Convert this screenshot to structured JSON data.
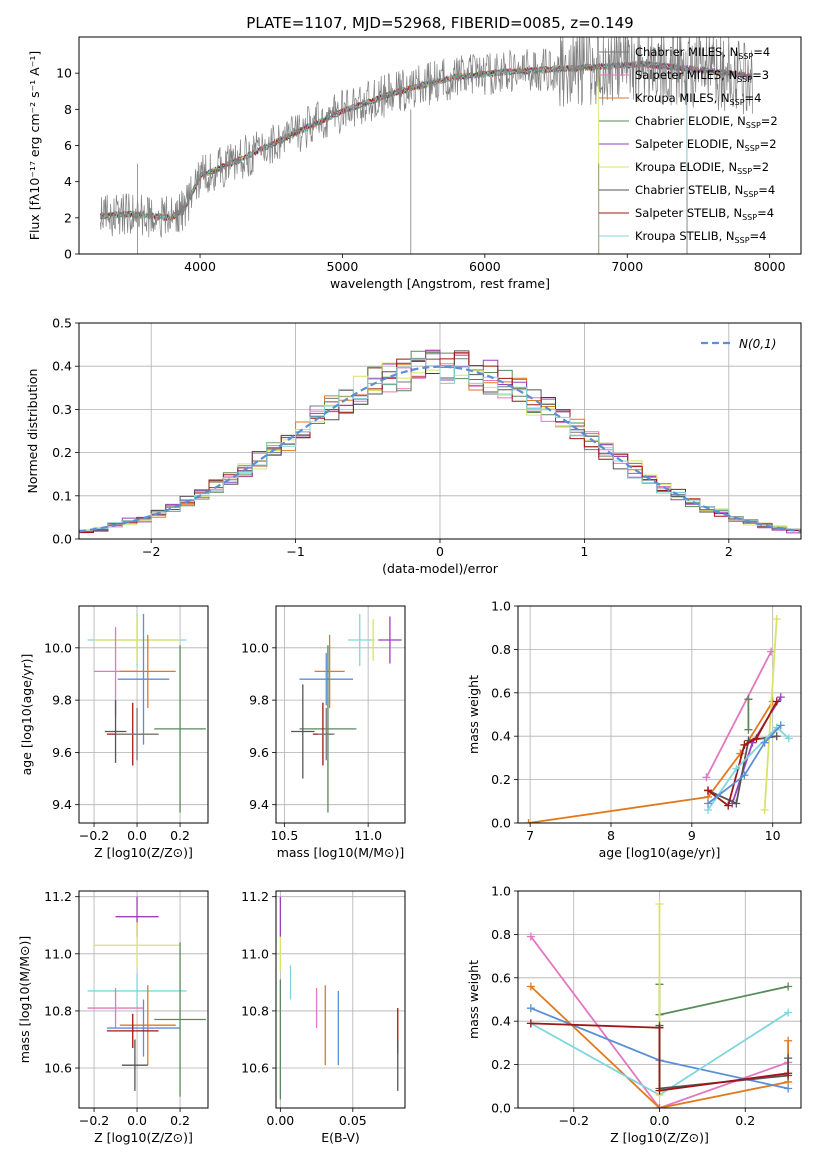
{
  "figure": {
    "title": "PLATE=1107, MJD=52968, FIBERID=0085, z=0.149"
  },
  "colors": {
    "Chabrier MILES": "#7a7a7a",
    "Salpeter MILES": "#e377c2",
    "Kroupa MILES": "#e07a1f",
    "Chabrier ELODIE": "#5a8a5a",
    "Salpeter ELODIE": "#9a3fc0",
    "Kroupa ELODIE": "#d9e36a",
    "Chabrier STELIB": "#555555",
    "Salpeter STELIB": "#a01515",
    "Kroupa STELIB": "#7fd6dc",
    "gauss": "#5b8fd6",
    "extra_blue": "#5b7fd6",
    "extra_red": "#8b1a1a"
  },
  "chart_data": [
    {
      "id": "spectrum",
      "type": "line",
      "xlabel": "wavelength [Angstrom, rest frame]",
      "ylabel": "Flux [fλ10⁻¹⁷ erg cm⁻² s⁻¹ A⁻¹]",
      "xlim": [
        3150,
        8220
      ],
      "ylim": [
        0,
        12
      ],
      "xticks": [
        4000,
        5000,
        6000,
        7000,
        8000
      ],
      "yticks": [
        0,
        2,
        4,
        6,
        8,
        10
      ],
      "legend_position": "top-right",
      "series": [
        {
          "name": "Chabrier MILES, N",
          "sub": "SSP",
          "tail": "=4",
          "color_key": "Chabrier MILES"
        },
        {
          "name": "Salpeter MILES, N",
          "sub": "SSP",
          "tail": "=3",
          "color_key": "Salpeter MILES"
        },
        {
          "name": "Kroupa MILES, N",
          "sub": "SSP",
          "tail": "=4",
          "color_key": "Kroupa MILES"
        },
        {
          "name": "Chabrier ELODIE, N",
          "sub": "SSP",
          "tail": "=2",
          "color_key": "Chabrier ELODIE"
        },
        {
          "name": "Salpeter ELODIE, N",
          "sub": "SSP",
          "tail": "=2",
          "color_key": "Salpeter ELODIE"
        },
        {
          "name": "Kroupa ELODIE, N",
          "sub": "SSP",
          "tail": "=2",
          "color_key": "Kroupa ELODIE"
        },
        {
          "name": "Chabrier STELIB, N",
          "sub": "SSP",
          "tail": "=4",
          "color_key": "Chabrier STELIB"
        },
        {
          "name": "Salpeter STELIB, N",
          "sub": "SSP",
          "tail": "=4",
          "color_key": "Salpeter STELIB"
        },
        {
          "name": "Kroupa STELIB, N",
          "sub": "SSP",
          "tail": "=4",
          "color_key": "Kroupa STELIB"
        }
      ],
      "continuum_x": [
        3300,
        3500,
        3800,
        3900,
        4000,
        4300,
        4700,
        5000,
        5400,
        5800,
        6200,
        6700,
        7100,
        7500,
        7900
      ],
      "continuum_y": [
        2.1,
        2.2,
        2.0,
        2.6,
        4.3,
        5.3,
        6.8,
        7.9,
        9.0,
        9.8,
        10.1,
        10.3,
        10.5,
        10.2,
        9.8
      ],
      "data_noise_amplitude": 1.2,
      "model_cutoffs": {
        "Kroupa ELODIE": 6800,
        "Salpeter STELIB": 7420,
        "Kroupa STELIB": 7420
      },
      "grid": false
    },
    {
      "id": "residuals",
      "type": "line",
      "subtype": "step-histogram",
      "xlabel": "(data-model)/error",
      "ylabel": "Normed distribution",
      "xlim": [
        -2.5,
        2.5
      ],
      "ylim": [
        0,
        0.5
      ],
      "xticks": [
        -2,
        -1,
        0,
        1,
        2
      ],
      "yticks": [
        0.0,
        0.1,
        0.2,
        0.3,
        0.4,
        0.5
      ],
      "bin_width": 0.1,
      "gaussian_label": "N(0,1)",
      "legend_position": "top-right",
      "grid": true
    },
    {
      "id": "age_vs_Z",
      "type": "scatter",
      "subtype": "errorbar",
      "xlabel": "Z [log10(Z/Z⊙)]",
      "ylabel": "age [log10(age/yr)]",
      "xlim": [
        -0.27,
        0.33
      ],
      "ylim": [
        9.33,
        10.16
      ],
      "xticks": [
        -0.2,
        0.0,
        0.2
      ],
      "yticks": [
        9.4,
        9.6,
        9.8,
        10.0
      ],
      "points": [
        {
          "color_key": "Kroupa STELIB",
          "x": 0.0,
          "y": 10.03,
          "xerr": 0.23,
          "yerr": 0.1
        },
        {
          "color_key": "Kroupa ELODIE",
          "x": 0.0,
          "y": 10.03,
          "xerr": 0.2,
          "yerr": 0.09
        },
        {
          "color_key": "Salpeter MILES",
          "x": -0.1,
          "y": 9.91,
          "xerr": 0.1,
          "yerr": 0.17
        },
        {
          "color_key": "Kroupa MILES",
          "x": 0.05,
          "y": 9.91,
          "xerr": 0.13,
          "yerr": 0.14
        },
        {
          "color_key": "gauss",
          "x": 0.03,
          "y": 9.88,
          "xerr": 0.12,
          "yerr": 0.25
        },
        {
          "color_key": "Chabrier ELODIE",
          "x": 0.2,
          "y": 9.69,
          "xerr": 0.12,
          "yerr": 0.32
        },
        {
          "color_key": "Chabrier STELIB",
          "x": -0.1,
          "y": 9.68,
          "xerr": 0.05,
          "yerr": 0.12
        },
        {
          "color_key": "Salpeter STELIB",
          "x": -0.02,
          "y": 9.67,
          "xerr": 0.12,
          "yerr": 0.12
        },
        {
          "color_key": "Chabrier MILES",
          "x": 0.0,
          "y": 9.67,
          "xerr": 0.1,
          "yerr": 0.1
        }
      ],
      "grid": true
    },
    {
      "id": "age_vs_mass",
      "type": "scatter",
      "subtype": "errorbar",
      "xlabel": "mass [log10(M/M⊙)]",
      "ylabel": "",
      "xlim": [
        10.45,
        11.22
      ],
      "ylim": [
        9.33,
        10.16
      ],
      "xticks": [
        10.5,
        11.0
      ],
      "yticks": [
        9.4,
        9.6,
        9.8,
        10.0
      ],
      "points": [
        {
          "color_key": "Salpeter ELODIE",
          "x": 11.13,
          "y": 10.03,
          "xerr": 0.07,
          "yerr": 0.09
        },
        {
          "color_key": "Kroupa ELODIE",
          "x": 11.03,
          "y": 10.03,
          "xerr": 0.01,
          "yerr": 0.08
        },
        {
          "color_key": "Kroupa STELIB",
          "x": 10.95,
          "y": 10.03,
          "xerr": 0.07,
          "yerr": 0.1
        },
        {
          "color_key": "Kroupa MILES",
          "x": 10.77,
          "y": 9.91,
          "xerr": 0.09,
          "yerr": 0.14
        },
        {
          "color_key": "gauss",
          "x": 10.75,
          "y": 9.88,
          "xerr": 0.16,
          "yerr": 0.1
        },
        {
          "color_key": "Chabrier ELODIE",
          "x": 10.76,
          "y": 9.69,
          "xerr": 0.17,
          "yerr": 0.32
        },
        {
          "color_key": "Chabrier STELIB",
          "x": 10.61,
          "y": 9.68,
          "xerr": 0.07,
          "yerr": 0.18
        },
        {
          "color_key": "Salpeter STELIB",
          "x": 10.73,
          "y": 9.67,
          "xerr": 0.06,
          "yerr": 0.12
        },
        {
          "color_key": "Chabrier MILES",
          "x": 10.75,
          "y": 9.67,
          "xerr": 0.05,
          "yerr": 0.1
        }
      ],
      "grid": true
    },
    {
      "id": "mass_weight_vs_age",
      "type": "line",
      "xlabel": "age [log10(age/yr)]",
      "ylabel": "mass weight",
      "xlim": [
        6.85,
        10.35
      ],
      "ylim": [
        0.0,
        1.0
      ],
      "xticks": [
        7,
        8,
        9,
        10
      ],
      "yticks": [
        0.0,
        0.2,
        0.4,
        0.6,
        0.8,
        1.0
      ],
      "series": [
        {
          "color_key": "Salpeter MILES",
          "x": [
            9.18,
            9.98
          ],
          "y": [
            0.21,
            0.79
          ]
        },
        {
          "color_key": "Kroupa MILES",
          "x": [
            6.98,
            9.2,
            9.6,
            10.0
          ],
          "y": [
            0.0,
            0.12,
            0.32,
            0.56
          ]
        },
        {
          "color_key": "Chabrier ELODIE",
          "x": [
            9.7,
            9.7,
            9.7
          ],
          "y": [
            0.43,
            0.57,
            0.57
          ]
        },
        {
          "color_key": "Salpeter ELODIE",
          "x": [
            9.5,
            9.75,
            10.1
          ],
          "y": [
            0.09,
            0.37,
            0.58
          ]
        },
        {
          "color_key": "Kroupa ELODIE",
          "x": [
            9.9,
            10.05
          ],
          "y": [
            0.06,
            0.94
          ]
        },
        {
          "color_key": "Chabrier STELIB",
          "x": [
            9.2,
            9.55,
            9.7,
            10.05
          ],
          "y": [
            0.15,
            0.09,
            0.38,
            0.4
          ]
        },
        {
          "color_key": "Salpeter STELIB",
          "x": [
            9.2,
            9.45,
            9.65,
            9.8,
            10.05
          ],
          "y": [
            0.15,
            0.08,
            0.36,
            0.39,
            0.56
          ]
        },
        {
          "color_key": "Kroupa STELIB",
          "x": [
            9.2,
            9.55,
            10.05,
            10.2
          ],
          "y": [
            0.06,
            0.25,
            0.44,
            0.39
          ]
        },
        {
          "color_key": "gauss",
          "x": [
            9.2,
            9.65,
            9.9,
            10.1
          ],
          "y": [
            0.09,
            0.22,
            0.37,
            0.45
          ]
        }
      ],
      "grid": true
    },
    {
      "id": "mass_vs_Z",
      "type": "scatter",
      "subtype": "errorbar",
      "xlabel": "Z [log10(Z/Z⊙)]",
      "ylabel": "mass [log10(M/M⊙)]",
      "xlim": [
        -0.27,
        0.33
      ],
      "ylim": [
        10.46,
        11.22
      ],
      "xticks": [
        -0.2,
        0.0,
        0.2
      ],
      "yticks": [
        10.6,
        10.8,
        11.0,
        11.2
      ],
      "points": [
        {
          "color_key": "Salpeter ELODIE",
          "x": 0.0,
          "y": 11.13,
          "xerr": 0.1,
          "yerr": 0.07
        },
        {
          "color_key": "Kroupa ELODIE",
          "x": 0.0,
          "y": 11.03,
          "xerr": 0.2,
          "yerr": 0.08
        },
        {
          "color_key": "Kroupa STELIB",
          "x": 0.0,
          "y": 10.87,
          "xerr": 0.23,
          "yerr": 0.06
        },
        {
          "color_key": "Salpeter MILES",
          "x": -0.1,
          "y": 10.81,
          "xerr": 0.13,
          "yerr": 0.07
        },
        {
          "color_key": "Kroupa MILES",
          "x": 0.05,
          "y": 10.75,
          "xerr": 0.13,
          "yerr": 0.14
        },
        {
          "color_key": "gauss",
          "x": 0.03,
          "y": 10.74,
          "xerr": 0.17,
          "yerr": 0.1
        },
        {
          "color_key": "Chabrier ELODIE",
          "x": 0.2,
          "y": 10.77,
          "xerr": 0.12,
          "yerr": 0.27
        },
        {
          "color_key": "Salpeter STELIB",
          "x": -0.02,
          "y": 10.73,
          "xerr": 0.12,
          "yerr": 0.06
        },
        {
          "color_key": "Chabrier STELIB",
          "x": -0.01,
          "y": 10.61,
          "xerr": 0.06,
          "yerr": 0.09
        }
      ],
      "grid": true
    },
    {
      "id": "mass_vs_ebv",
      "type": "scatter",
      "subtype": "errorbar",
      "xlabel": "E(B-V)",
      "ylabel": "",
      "xlim": [
        -0.003,
        0.086
      ],
      "ylim": [
        10.46,
        11.22
      ],
      "xticks": [
        0.0,
        0.05
      ],
      "yticks": [
        10.6,
        10.8,
        11.0,
        11.2
      ],
      "points": [
        {
          "color_key": "Salpeter ELODIE",
          "x": 0.0,
          "y": 11.13,
          "xerr": 0,
          "yerr": 0.07
        },
        {
          "color_key": "Kroupa ELODIE",
          "x": 0.0,
          "y": 11.0,
          "xerr": 0,
          "yerr": 0.06
        },
        {
          "color_key": "Kroupa STELIB",
          "x": 0.007,
          "y": 10.9,
          "xerr": 0,
          "yerr": 0.06
        },
        {
          "color_key": "Chabrier ELODIE",
          "x": 0.0,
          "y": 10.7,
          "xerr": 0,
          "yerr": 0.21
        },
        {
          "color_key": "Salpeter MILES",
          "x": 0.025,
          "y": 10.81,
          "xerr": 0,
          "yerr": 0.07
        },
        {
          "color_key": "Kroupa MILES",
          "x": 0.031,
          "y": 10.75,
          "xerr": 0,
          "yerr": 0.14
        },
        {
          "color_key": "gauss",
          "x": 0.04,
          "y": 10.74,
          "xerr": 0,
          "yerr": 0.13
        },
        {
          "color_key": "Salpeter STELIB",
          "x": 0.081,
          "y": 10.73,
          "xerr": 0,
          "yerr": 0.08
        },
        {
          "color_key": "Chabrier STELIB",
          "x": 0.081,
          "y": 10.61,
          "xerr": 0,
          "yerr": 0.09
        }
      ],
      "grid": true
    },
    {
      "id": "mass_weight_vs_Z",
      "type": "line",
      "xlabel": "Z [log10(Z/Z⊙)]",
      "ylabel": "mass weight",
      "xlim": [
        -0.33,
        0.33
      ],
      "ylim": [
        0.0,
        1.0
      ],
      "xticks": [
        -0.2,
        0.0,
        0.2
      ],
      "yticks": [
        0.0,
        0.2,
        0.4,
        0.6,
        0.8,
        1.0
      ],
      "series": [
        {
          "color_key": "Salpeter MILES",
          "x": [
            -0.3,
            0.0,
            0.3
          ],
          "y": [
            0.79,
            0.0,
            0.21
          ]
        },
        {
          "color_key": "Kroupa MILES",
          "x": [
            -0.3,
            0.0,
            0.3,
            0.3
          ],
          "y": [
            0.56,
            0.0,
            0.12,
            0.31
          ]
        },
        {
          "color_key": "gauss",
          "x": [
            -0.3,
            0.0,
            0.3
          ],
          "y": [
            0.46,
            0.22,
            0.09
          ]
        },
        {
          "color_key": "Kroupa STELIB",
          "x": [
            -0.3,
            0.0,
            0.3
          ],
          "y": [
            0.39,
            0.06,
            0.44
          ]
        },
        {
          "color_key": "Chabrier ELODIE",
          "x": [
            0.0,
            0.0,
            0.3
          ],
          "y": [
            0.57,
            0.43,
            0.56
          ]
        },
        {
          "color_key": "Kroupa ELODIE",
          "x": [
            0.0,
            0.0
          ],
          "y": [
            0.94,
            0.06
          ]
        },
        {
          "color_key": "Chabrier STELIB",
          "x": [
            0.0,
            0.0,
            0.3,
            0.3
          ],
          "y": [
            0.38,
            0.09,
            0.15,
            0.23
          ]
        },
        {
          "color_key": "Salpeter STELIB",
          "x": [
            -0.3,
            0.0,
            0.0,
            0.3
          ],
          "y": [
            0.39,
            0.37,
            0.08,
            0.16
          ]
        }
      ],
      "grid": true
    }
  ]
}
